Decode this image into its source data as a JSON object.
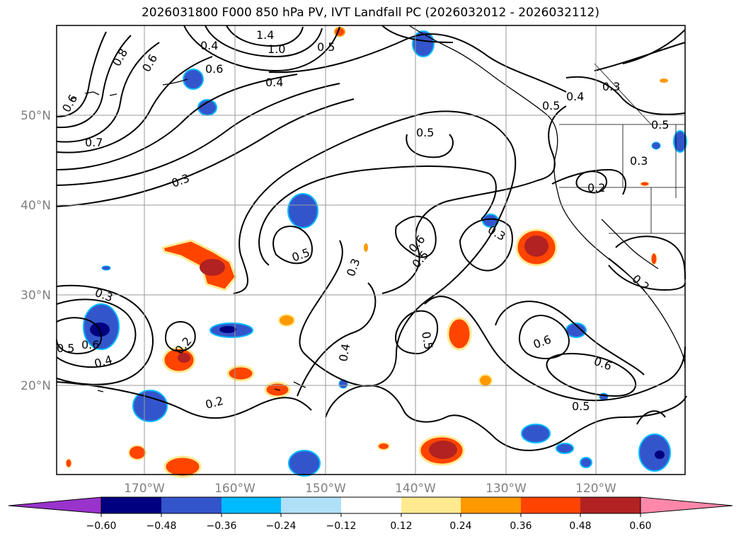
{
  "title": "2026031800 F000 850 hPa PV, IVT Landfall PC (2026032012 - 2026032112)",
  "map": {
    "lat_labels": [
      "50°N",
      "40°N",
      "30°N",
      "20°N"
    ],
    "lon_labels": [
      "170°W",
      "160°W",
      "150°W",
      "140°W",
      "130°W",
      "120°W"
    ],
    "contour_labels": [
      "0.8",
      "0.6",
      "0.6",
      "0.4",
      "1.4",
      "1.0",
      "0.5",
      "0.4",
      "0.3",
      "0.4",
      "0.5",
      "0.5",
      "0.7",
      "0.3",
      "0.5",
      "0.5",
      "0.3",
      "0.2",
      "0.3",
      "0.6",
      "0.5",
      "0.3",
      "0.5",
      "0.4",
      "0.6",
      "0.6",
      "0.5",
      "0.5",
      "0.6",
      "0.4",
      "0.2",
      "0.2",
      "0.3",
      "0.2",
      "0.6"
    ],
    "line_color": "#000000",
    "grid_color": "#9a9a9a"
  },
  "colorbar": {
    "ticks": [
      "−0.60",
      "−0.48",
      "−0.36",
      "−0.24",
      "−0.12",
      "0.12",
      "0.24",
      "0.36",
      "0.48",
      "0.60"
    ],
    "colors": [
      "#9933cc",
      "#000080",
      "#3355cc",
      "#00bbff",
      "#b0e0f8",
      "#ffffff",
      "#ffea90",
      "#ff9900",
      "#ff4400",
      "#b22222",
      "#ff88aa"
    ]
  }
}
